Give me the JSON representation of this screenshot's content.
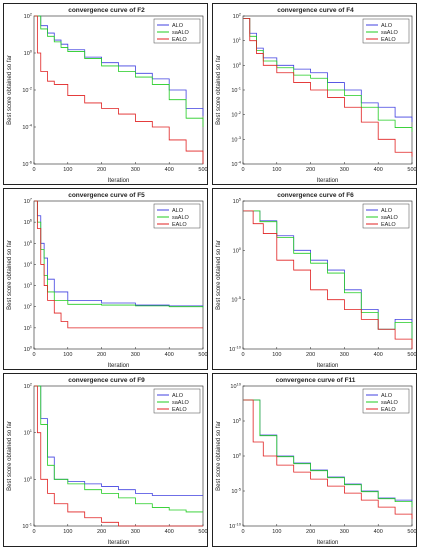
{
  "colors": {
    "ALO": "#4040e0",
    "saALO": "#22cc22",
    "EALO": "#e02020"
  },
  "chart_data": [
    {
      "type": "line",
      "title": "convergence curve of F2",
      "xlabel": "Iteration",
      "ylabel": "Best score obtained so far",
      "yscale": "log",
      "xlim": [
        0,
        500
      ],
      "ylim_exp": [
        -6,
        2
      ],
      "xticks": [
        "0",
        "100",
        "200",
        "300",
        "400",
        "500"
      ],
      "yticks": [
        "10^2",
        "10^0",
        "10^-2",
        "10^-4",
        "10^-6"
      ],
      "legend": [
        "ALO",
        "saALO",
        "EALO"
      ],
      "legend_position": "top-right",
      "series": [
        {
          "name": "ALO",
          "x": [
            1,
            20,
            40,
            60,
            80,
            100,
            150,
            200,
            250,
            300,
            350,
            400,
            450,
            500
          ],
          "y": [
            100,
            30,
            12,
            5,
            3,
            1.5,
            0.6,
            0.3,
            0.2,
            0.08,
            0.04,
            0.01,
            0.001,
            0.0004
          ]
        },
        {
          "name": "saALO",
          "x": [
            1,
            20,
            40,
            60,
            80,
            100,
            150,
            200,
            250,
            300,
            350,
            400,
            450,
            500
          ],
          "y": [
            100,
            20,
            8,
            4,
            2,
            1.2,
            0.5,
            0.2,
            0.1,
            0.05,
            0.02,
            0.003,
            0.0003,
            0.0001
          ]
        },
        {
          "name": "EALO",
          "x": [
            1,
            10,
            20,
            40,
            60,
            100,
            150,
            200,
            250,
            300,
            350,
            400,
            450,
            500
          ],
          "y": [
            100,
            1,
            0.1,
            0.03,
            0.02,
            0.005,
            0.002,
            0.001,
            0.0005,
            0.0002,
            0.0001,
            2e-05,
            5e-06,
            1e-06
          ]
        }
      ]
    },
    {
      "type": "line",
      "title": "convergence curve of F4",
      "xlabel": "Iteration",
      "ylabel": "Best score obtained so far",
      "yscale": "log",
      "xlim": [
        0,
        500
      ],
      "ylim_exp": [
        -4,
        2
      ],
      "xticks": [
        "0",
        "100",
        "200",
        "300",
        "400",
        "500"
      ],
      "yticks": [
        "10^2",
        "10^1",
        "10^0",
        "10^-1",
        "10^-2",
        "10^-3",
        "10^-4"
      ],
      "legend": [
        "ALO",
        "saALO",
        "EALO"
      ],
      "legend_position": "top-right",
      "series": [
        {
          "name": "ALO",
          "x": [
            1,
            20,
            40,
            60,
            100,
            150,
            200,
            250,
            300,
            350,
            400,
            450,
            500
          ],
          "y": [
            80,
            20,
            5,
            2,
            1,
            0.7,
            0.5,
            0.2,
            0.1,
            0.03,
            0.02,
            0.008,
            0.005
          ]
        },
        {
          "name": "saALO",
          "x": [
            1,
            20,
            40,
            60,
            100,
            150,
            200,
            250,
            300,
            350,
            400,
            450,
            500
          ],
          "y": [
            80,
            15,
            4,
            1.5,
            0.8,
            0.4,
            0.3,
            0.1,
            0.06,
            0.02,
            0.006,
            0.003,
            0.002
          ]
        },
        {
          "name": "EALO",
          "x": [
            1,
            20,
            40,
            60,
            100,
            150,
            200,
            250,
            300,
            350,
            400,
            450,
            500
          ],
          "y": [
            80,
            10,
            3,
            1,
            0.5,
            0.2,
            0.1,
            0.05,
            0.02,
            0.005,
            0.001,
            0.0003,
            0.0002
          ]
        }
      ]
    },
    {
      "type": "line",
      "title": "convergence curve of F5",
      "xlabel": "Iteration",
      "ylabel": "Best score obtained so far",
      "yscale": "log",
      "xlim": [
        0,
        500
      ],
      "ylim_exp": [
        0,
        7
      ],
      "xticks": [
        "0",
        "100",
        "200",
        "300",
        "400",
        "500"
      ],
      "yticks": [
        "10^7",
        "10^6",
        "10^5",
        "10^4",
        "10^3",
        "10^2",
        "10^1",
        "10^0"
      ],
      "legend": [
        "ALO",
        "saALO",
        "EALO"
      ],
      "legend_position": "top-right",
      "series": [
        {
          "name": "ALO",
          "x": [
            1,
            10,
            20,
            30,
            40,
            60,
            100,
            200,
            300,
            400,
            500
          ],
          "y": [
            10000000,
            2000000,
            100000,
            20000,
            2000,
            500,
            200,
            150,
            120,
            110,
            100
          ]
        },
        {
          "name": "saALO",
          "x": [
            1,
            10,
            20,
            30,
            40,
            60,
            100,
            200,
            300,
            400,
            500
          ],
          "y": [
            10000000,
            1000000,
            50000,
            3000,
            500,
            200,
            130,
            120,
            110,
            100,
            90
          ]
        },
        {
          "name": "EALO",
          "x": [
            1,
            10,
            20,
            30,
            40,
            60,
            80,
            100,
            200,
            300,
            400,
            500
          ],
          "y": [
            10000000,
            500000,
            10000,
            1000,
            200,
            50,
            20,
            10,
            10,
            10,
            10,
            10
          ]
        }
      ]
    },
    {
      "type": "line",
      "title": "convergence curve of F6",
      "xlabel": "Iteration",
      "ylabel": "Best score obtained so far",
      "yscale": "log",
      "xlim": [
        0,
        500
      ],
      "ylim_exp": [
        -10,
        5
      ],
      "xticks": [
        "0",
        "100",
        "200",
        "300",
        "400",
        "500"
      ],
      "yticks": [
        "10^5",
        "10^0",
        "10^-5",
        "10^-10"
      ],
      "legend": [
        "ALO",
        "saALO",
        "EALO"
      ],
      "legend_position": "top-right",
      "series": [
        {
          "name": "ALO",
          "x": [
            1,
            50,
            100,
            150,
            200,
            250,
            300,
            350,
            400,
            450,
            500
          ],
          "y": [
            10000,
            1000,
            30,
            1,
            0.1,
            0.01,
            0.0001,
            1e-06,
            1e-08,
            1e-07,
            1e-09
          ]
        },
        {
          "name": "saALO",
          "x": [
            1,
            50,
            100,
            150,
            200,
            250,
            300,
            350,
            400,
            450,
            500
          ],
          "y": [
            10000,
            800,
            20,
            0.5,
            0.05,
            0.005,
            5e-05,
            5e-07,
            1e-08,
            5e-08,
            5e-10
          ]
        },
        {
          "name": "EALO",
          "x": [
            1,
            30,
            60,
            100,
            150,
            200,
            250,
            300,
            350,
            400,
            450,
            500
          ],
          "y": [
            10000,
            500,
            50,
            0.1,
            0.01,
            0.0001,
            1e-05,
            1e-06,
            1e-07,
            1e-08,
            1e-09,
            1e-10
          ]
        }
      ]
    },
    {
      "type": "line",
      "title": "convergence curve of F9",
      "xlabel": "Iteration",
      "ylabel": "Best score obtained so far",
      "yscale": "log",
      "xlim": [
        0,
        500
      ],
      "ylim_exp": [
        -1,
        2
      ],
      "xticks": [
        "0",
        "100",
        "200",
        "300",
        "400",
        "500"
      ],
      "yticks": [
        "10^2",
        "10^1",
        "10^0",
        "10^-1"
      ],
      "legend": [
        "ALO",
        "saALO",
        "EALO"
      ],
      "legend_position": "top-right",
      "series": [
        {
          "name": "ALO",
          "x": [
            1,
            20,
            40,
            60,
            100,
            150,
            200,
            250,
            300,
            350,
            400,
            450,
            500
          ],
          "y": [
            200,
            20,
            3,
            1,
            0.9,
            0.8,
            0.7,
            0.6,
            0.5,
            0.45,
            0.45,
            0.45,
            0.45
          ]
        },
        {
          "name": "saALO",
          "x": [
            1,
            20,
            40,
            60,
            100,
            150,
            200,
            250,
            300,
            350,
            400,
            450,
            500
          ],
          "y": [
            200,
            15,
            2,
            1,
            0.8,
            0.6,
            0.5,
            0.4,
            0.3,
            0.25,
            0.22,
            0.2,
            0.2
          ]
        },
        {
          "name": "EALO",
          "x": [
            1,
            10,
            20,
            40,
            60,
            100,
            150,
            200,
            250,
            300,
            350,
            400,
            450,
            500
          ],
          "y": [
            200,
            10,
            1,
            0.5,
            0.3,
            0.2,
            0.15,
            0.12,
            0.1,
            0.08,
            0.07,
            0.06,
            0.06,
            0.06
          ]
        }
      ]
    },
    {
      "type": "line",
      "title": "convergence curve of F11",
      "xlabel": "Iteration",
      "ylabel": "Best score obtained so far",
      "yscale": "log",
      "xlim": [
        0,
        500
      ],
      "ylim_exp": [
        -10,
        10
      ],
      "xticks": [
        "0",
        "100",
        "200",
        "300",
        "400",
        "500"
      ],
      "yticks": [
        "10^10",
        "10^5",
        "10^0",
        "10^-5",
        "10^-10"
      ],
      "legend": [
        "ALO",
        "saALO",
        "EALO"
      ],
      "legend_position": "top-right",
      "series": [
        {
          "name": "ALO",
          "x": [
            1,
            50,
            100,
            150,
            200,
            250,
            300,
            350,
            400,
            450,
            500
          ],
          "y": [
            100000000,
            1000,
            1,
            0.1,
            0.01,
            0.001,
            0.0001,
            1e-05,
            1e-06,
            5e-07,
            1e-07
          ]
        },
        {
          "name": "saALO",
          "x": [
            1,
            50,
            100,
            150,
            200,
            250,
            300,
            350,
            400,
            450,
            500
          ],
          "y": [
            100000000,
            800,
            0.8,
            0.08,
            0.008,
            0.0008,
            8e-05,
            8e-06,
            8e-07,
            3e-07,
            5e-08
          ]
        },
        {
          "name": "EALO",
          "x": [
            1,
            30,
            60,
            100,
            150,
            200,
            250,
            300,
            350,
            400,
            450,
            500
          ],
          "y": [
            100000000,
            100,
            1,
            0.05,
            0.005,
            0.0005,
            5e-05,
            5e-06,
            5e-07,
            5e-08,
            5e-09,
            1e-09
          ]
        }
      ]
    }
  ]
}
